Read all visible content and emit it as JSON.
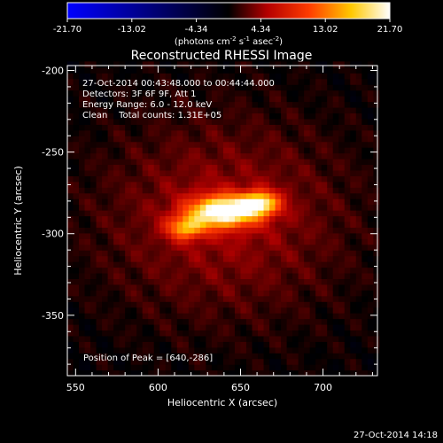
{
  "chart_data": {
    "type": "heatmap",
    "title": "Reconstructed RHESSI Image",
    "xlabel": "Heliocentric X (arcsec)",
    "ylabel": "Heliocentric Y (arcsec)",
    "xlim": [
      545,
      733
    ],
    "ylim": [
      -387,
      -197
    ],
    "x_ticks": [
      550,
      600,
      650,
      700
    ],
    "y_ticks": [
      -200,
      -250,
      -300,
      -350
    ],
    "colorbar": {
      "label": "(photons cm",
      "label_sup1": "-2",
      "label_mid": " s",
      "label_sup2": "-1",
      "label_mid2": " asec",
      "label_sup3": "-2",
      "label_end": ")",
      "ticks": [
        "-21.70",
        "-13.02",
        "-4.34",
        "4.34",
        "13.02",
        "21.70"
      ],
      "range": [
        -21.7,
        21.7
      ],
      "colormap": "hot (blue→black→red→yellow→white)"
    },
    "annotations": {
      "line1": "27-Oct-2014 00:43:48.000 to 00:44:44.000",
      "line2": "Detectors: 3F 6F 9F, Att 1",
      "line3": "Energy Range: 6.0 - 12.0 keV",
      "line4": "Clean    Total counts: 1.31E+05",
      "peak": "Position of Peak = [640,-286]"
    },
    "peak": [
      640,
      -286
    ],
    "sources": [
      {
        "x": 640,
        "y": -286,
        "amp": 21.7,
        "sx": 14,
        "sy": 6.5
      },
      {
        "x": 662,
        "y": -281,
        "amp": 15,
        "sx": 8,
        "sy": 5
      },
      {
        "x": 617,
        "y": -296,
        "amp": 12,
        "sx": 8,
        "sy": 5
      },
      {
        "x": 640,
        "y": -290,
        "amp": 4.5,
        "sx": 52,
        "sy": 42
      }
    ]
  },
  "footer": {
    "timestamp": "27-Oct-2014 14:18"
  }
}
